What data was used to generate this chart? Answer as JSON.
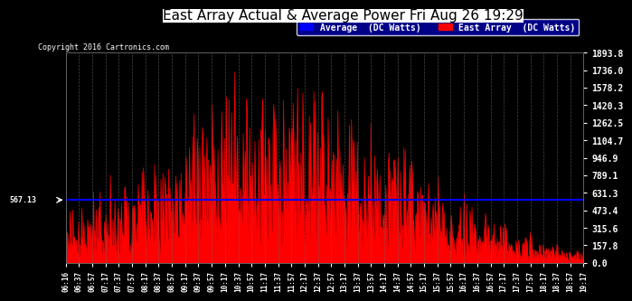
{
  "title": "East Array Actual & Average Power Fri Aug 26 19:29",
  "copyright": "Copyright 2016 Cartronics.com",
  "avg_label": "Average  (DC Watts)",
  "east_label": "East Array  (DC Watts)",
  "avg_value": 567.13,
  "yticks": [
    0.0,
    157.8,
    315.6,
    473.4,
    631.3,
    789.1,
    946.9,
    1104.7,
    1262.5,
    1420.3,
    1578.2,
    1736.0,
    1893.8
  ],
  "ymax": 1893.8,
  "background_color": "#000000",
  "plot_bg_color": "#000000",
  "fill_color": "#FF0000",
  "line_color": "#FF0000",
  "avg_line_color": "#0000FF",
  "grid_color": "#666666",
  "text_color": "#FFFFFF",
  "title_color": "#000000",
  "xtick_labels": [
    "06:16",
    "06:37",
    "06:57",
    "07:17",
    "07:37",
    "07:57",
    "08:17",
    "08:37",
    "08:57",
    "09:17",
    "09:37",
    "09:57",
    "10:17",
    "10:37",
    "10:57",
    "11:17",
    "11:37",
    "11:57",
    "12:17",
    "12:37",
    "12:57",
    "13:17",
    "13:37",
    "13:57",
    "14:17",
    "14:37",
    "14:57",
    "15:17",
    "15:37",
    "15:57",
    "16:17",
    "16:37",
    "16:57",
    "17:17",
    "17:37",
    "17:57",
    "18:17",
    "18:37",
    "18:57",
    "19:17"
  ]
}
